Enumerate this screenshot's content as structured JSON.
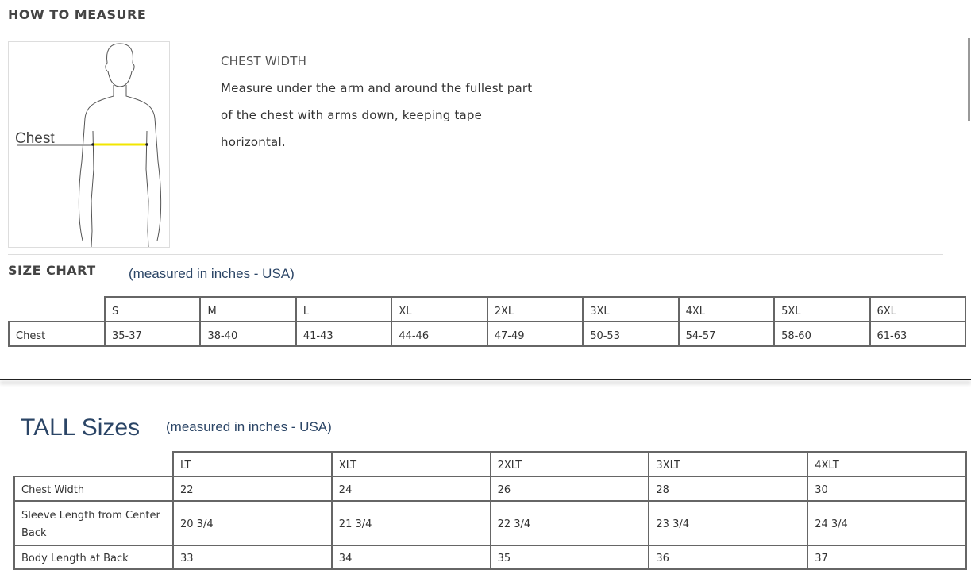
{
  "how_to_measure": {
    "title": "HOW TO MEASURE",
    "figure_label": "Chest",
    "heading": "CHEST WIDTH",
    "lines": [
      "Measure under the arm and around the fullest part",
      "of the chest with arms down, keeping tape",
      "horizontal."
    ]
  },
  "size_chart": {
    "title": "SIZE CHART",
    "unit": "(measured in inches - USA)",
    "headers": [
      "S",
      "M",
      "L",
      "XL",
      "2XL",
      "3XL",
      "4XL",
      "5XL",
      "6XL"
    ],
    "row_label": "Chest",
    "values": [
      "35-37",
      "38-40",
      "41-43",
      "44-46",
      "47-49",
      "50-53",
      "54-57",
      "58-60",
      "61-63"
    ]
  },
  "tall": {
    "title": "TALL Sizes",
    "unit": "(measured in inches - USA)",
    "headers": [
      "LT",
      "XLT",
      "2XLT",
      "3XLT",
      "4XLT"
    ],
    "rows": [
      {
        "label": "Chest Width",
        "values": [
          "22",
          "24",
          "26",
          "28",
          "30"
        ]
      },
      {
        "label": "Sleeve Length from Center Back",
        "values": [
          "20 3/4",
          "21 3/4",
          "22 3/4",
          "23 3/4",
          "24 3/4"
        ]
      },
      {
        "label": "Body Length at Back",
        "values": [
          "33",
          "34",
          "35",
          "36",
          "37"
        ]
      }
    ]
  },
  "colors": {
    "tape": "#f2e600",
    "heading_blue": "#2b4566"
  }
}
